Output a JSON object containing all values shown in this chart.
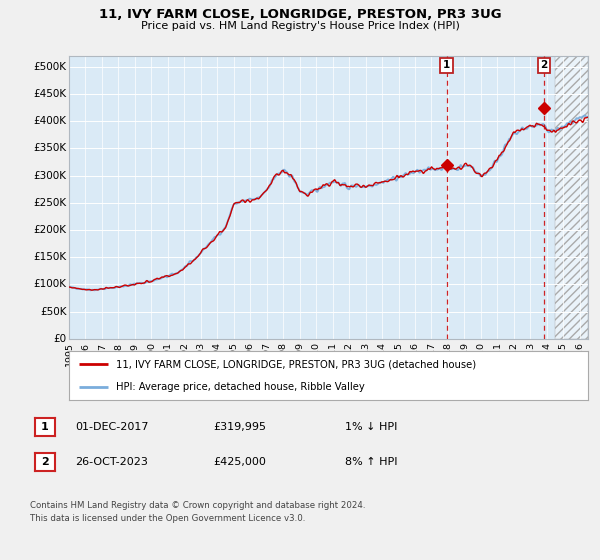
{
  "title": "11, IVY FARM CLOSE, LONGRIDGE, PRESTON, PR3 3UG",
  "subtitle": "Price paid vs. HM Land Registry's House Price Index (HPI)",
  "ylim": [
    0,
    520000
  ],
  "yticks": [
    0,
    50000,
    100000,
    150000,
    200000,
    250000,
    300000,
    350000,
    400000,
    450000,
    500000
  ],
  "ytick_labels": [
    "£0",
    "£50K",
    "£100K",
    "£150K",
    "£200K",
    "£250K",
    "£300K",
    "£350K",
    "£400K",
    "£450K",
    "£500K"
  ],
  "xlim_start": 1995.0,
  "xlim_end": 2026.5,
  "hpi_color": "#7aaddc",
  "price_color": "#cc0000",
  "bg_color": "#daeaf6",
  "grid_color": "#ffffff",
  "fig_bg": "#f0f0f0",
  "purchase1_x": 2017.917,
  "purchase1_y": 319995,
  "purchase2_x": 2023.833,
  "purchase2_y": 425000,
  "purchase1_label": "01-DEC-2017",
  "purchase1_price": "£319,995",
  "purchase1_hpi": "1% ↓ HPI",
  "purchase2_label": "26-OCT-2023",
  "purchase2_price": "£425,000",
  "purchase2_hpi": "8% ↑ HPI",
  "legend_label1": "11, IVY FARM CLOSE, LONGRIDGE, PRESTON, PR3 3UG (detached house)",
  "legend_label2": "HPI: Average price, detached house, Ribble Valley",
  "footer": "Contains HM Land Registry data © Crown copyright and database right 2024.\nThis data is licensed under the Open Government Licence v3.0.",
  "future_shade_start": 2024.5,
  "xtick_years": [
    1995,
    1996,
    1997,
    1998,
    1999,
    2000,
    2001,
    2002,
    2003,
    2004,
    2005,
    2006,
    2007,
    2008,
    2009,
    2010,
    2011,
    2012,
    2013,
    2014,
    2015,
    2016,
    2017,
    2018,
    2019,
    2020,
    2021,
    2022,
    2023,
    2024,
    2025,
    2026
  ]
}
